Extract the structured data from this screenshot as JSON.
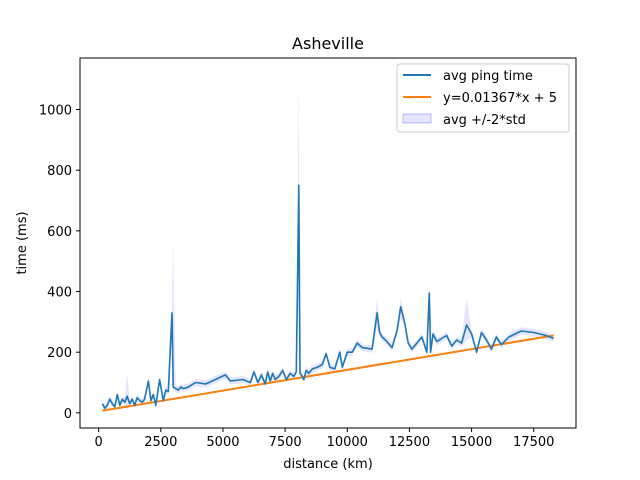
{
  "chart_data": {
    "type": "line",
    "title": "Asheville",
    "xlabel": "distance (km)",
    "ylabel": "time (ms)",
    "xlim": [
      -750,
      19200
    ],
    "ylim": [
      -50,
      1170
    ],
    "xticks": [
      0,
      2500,
      5000,
      7500,
      10000,
      12500,
      15000,
      17500
    ],
    "yticks": [
      0,
      200,
      400,
      600,
      800,
      1000
    ],
    "grid": false,
    "legend_position": "top-right",
    "series": [
      {
        "name": "avg ping time",
        "type": "line",
        "color": "#1f77b4",
        "x": [
          150,
          250,
          350,
          450,
          550,
          650,
          750,
          850,
          950,
          1050,
          1150,
          1250,
          1350,
          1450,
          1550,
          1650,
          1750,
          1850,
          2000,
          2100,
          2200,
          2300,
          2450,
          2600,
          2700,
          2800,
          2950,
          3000,
          3100,
          3200,
          3300,
          3400,
          3600,
          3900,
          4300,
          4700,
          5100,
          5300,
          5800,
          6100,
          6250,
          6400,
          6550,
          6700,
          6800,
          6900,
          7000,
          7100,
          7250,
          7400,
          7550,
          7700,
          7850,
          7950,
          8050,
          8100,
          8150,
          8250,
          8350,
          8450,
          8600,
          8800,
          9000,
          9150,
          9300,
          9500,
          9700,
          9800,
          10000,
          10200,
          10400,
          10600,
          11000,
          11200,
          11300,
          11400,
          11600,
          11800,
          12000,
          12150,
          12300,
          12450,
          12600,
          12800,
          13000,
          13200,
          13300,
          13350,
          13450,
          13600,
          13800,
          14000,
          14200,
          14400,
          14600,
          14800,
          15000,
          15200,
          15400,
          15600,
          15800,
          16000,
          16200,
          16500,
          17000,
          17500,
          18000,
          18300
        ],
        "y": [
          30,
          15,
          25,
          45,
          30,
          20,
          60,
          25,
          45,
          35,
          55,
          30,
          45,
          25,
          50,
          40,
          35,
          45,
          105,
          40,
          60,
          25,
          110,
          40,
          75,
          70,
          330,
          85,
          80,
          75,
          85,
          80,
          85,
          100,
          95,
          110,
          125,
          105,
          110,
          100,
          135,
          100,
          125,
          95,
          135,
          105,
          130,
          110,
          120,
          140,
          110,
          130,
          120,
          135,
          750,
          130,
          125,
          110,
          140,
          130,
          145,
          150,
          160,
          195,
          150,
          145,
          200,
          150,
          200,
          200,
          230,
          215,
          210,
          330,
          265,
          250,
          235,
          215,
          270,
          350,
          300,
          230,
          210,
          230,
          250,
          200,
          395,
          200,
          260,
          235,
          245,
          255,
          220,
          240,
          230,
          290,
          260,
          200,
          265,
          240,
          210,
          250,
          225,
          250,
          270,
          265,
          255,
          245
        ]
      },
      {
        "name": "y=0.01367*x + 5",
        "type": "line",
        "color": "#ff7f0e",
        "slope": 0.01367,
        "intercept": 5,
        "x_range": [
          150,
          18300
        ]
      },
      {
        "name": "avg +/-2*std",
        "type": "area",
        "color": "#0000ff",
        "opacity": 0.1,
        "spike_band": [
          {
            "x": 3000,
            "low": 80,
            "high": 580
          },
          {
            "x": 8050,
            "low": 380,
            "high": 1120
          },
          {
            "x": 1150,
            "low": 10,
            "high": 130
          },
          {
            "x": 11200,
            "low": 280,
            "high": 380
          },
          {
            "x": 12150,
            "low": 310,
            "high": 380
          },
          {
            "x": 13300,
            "low": 360,
            "high": 430
          },
          {
            "x": 14800,
            "low": 240,
            "high": 380
          }
        ]
      }
    ]
  }
}
